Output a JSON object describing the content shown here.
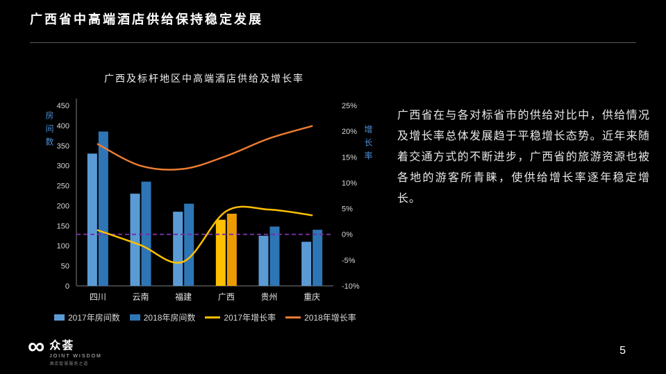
{
  "slide": {
    "title": "广西省中高端酒店供给保持稳定发展",
    "commentary": "广西省在与各对标省市的供给对比中，供给情况及增长率总体发展趋于平稳增长态势。近年来随着交通方式的不断进步，广西省的旅游资源也被各地的游客所青睐，使供给增长率逐年稳定增长。",
    "page_number": "5"
  },
  "logo": {
    "name_cn": "众荟",
    "name_en": "JOINT WISDOM",
    "tagline": "酒店智慧服务之道"
  },
  "chart_data": {
    "type": "combo-bar-line",
    "title": "广西及标杆地区中高端酒店供给及增长率",
    "categories": [
      "四川",
      "云南",
      "福建",
      "广西",
      "贵州",
      "重庆"
    ],
    "left_axis": {
      "label": "房间数",
      "min": 0,
      "max": 450,
      "step": 50
    },
    "right_axis": {
      "label": "增长率",
      "min": -10,
      "max": 25,
      "step": 5,
      "unit": "%"
    },
    "highlight_category": "广西",
    "bar_series": [
      {
        "name": "2017年房间数",
        "color": "#5B9BD5",
        "highlight_color": "#FFC000",
        "values": [
          330,
          230,
          185,
          165,
          125,
          110
        ]
      },
      {
        "name": "2018年房间数",
        "color": "#2E75B6",
        "highlight_color": "#ED9C00",
        "values": [
          385,
          260,
          205,
          180,
          148,
          140
        ]
      }
    ],
    "line_series": [
      {
        "name": "2017年增长率",
        "color": "#FFC000",
        "values": [
          0.8,
          -2.1,
          -5.3,
          4.5,
          4.8,
          3.7
        ]
      },
      {
        "name": "2018年增长率",
        "color": "#ED7D31",
        "values": [
          17.5,
          13.3,
          12.7,
          15.2,
          18.6,
          21.0
        ]
      }
    ],
    "zero_line": {
      "value": 0,
      "color": "#7030A0",
      "style": "dashed"
    },
    "legend_position": "bottom",
    "grid": false,
    "text_color": "#d9d9d9",
    "axis_color": "#7f7f7f"
  }
}
